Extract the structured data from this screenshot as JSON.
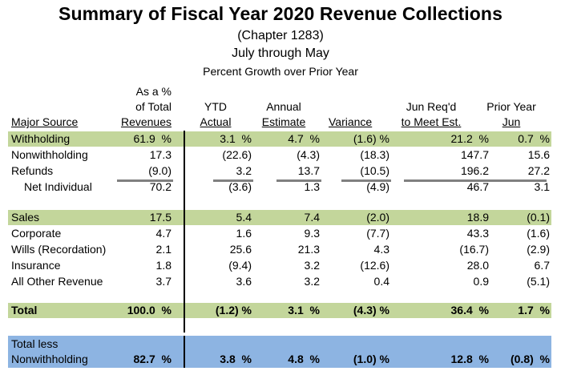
{
  "title": "Summary of Fiscal Year 2020 Revenue Collections",
  "subtitle1": "(Chapter 1283)",
  "subtitle2": "July through May",
  "subtitle3": "Percent Growth over Prior Year",
  "headers": {
    "major_source": "Major Source",
    "pct_total_l1": "As a %",
    "pct_total_l2": "of Total",
    "pct_total_l3": "Revenues",
    "ytd_l1": "YTD",
    "ytd_l2": "Actual",
    "annual_l1": "Annual",
    "annual_l2": "Estimate",
    "variance": "Variance",
    "jun_l1": "Jun Req'd",
    "jun_l2": "to Meet Est.",
    "prior_l1": "Prior Year",
    "prior_l2": "Jun"
  },
  "rows": [
    {
      "label": "Withholding",
      "pct": "61.9  %",
      "ytd": "3.1  %",
      "annual": "4.7  %",
      "variance": "(1.6) %",
      "jun": "21.2  %",
      "prior": "0.7  %"
    },
    {
      "label": "Nonwithholding",
      "pct": "17.3",
      "ytd": "(22.6)",
      "annual": "(4.3)",
      "variance": "(18.3)",
      "jun": "147.7",
      "prior": "15.6"
    },
    {
      "label": "Refunds",
      "pct": "(9.0)",
      "ytd": "3.2",
      "annual": "13.7",
      "variance": "(10.5)",
      "jun": "196.2",
      "prior": "27.2"
    },
    {
      "label": "Net Individual",
      "pct": "70.2",
      "ytd": "(3.6)",
      "annual": "1.3",
      "variance": "(4.9)",
      "jun": "46.7",
      "prior": "3.1"
    },
    {
      "label": "Sales",
      "pct": "17.5",
      "ytd": "5.4",
      "annual": "7.4",
      "variance": "(2.0)",
      "jun": "18.9",
      "prior": "(0.1)"
    },
    {
      "label": "Corporate",
      "pct": "4.7",
      "ytd": "1.6",
      "annual": "9.3",
      "variance": "(7.7)",
      "jun": "43.3",
      "prior": "(1.6)"
    },
    {
      "label": "Wills (Recordation)",
      "pct": "2.1",
      "ytd": "25.6",
      "annual": "21.3",
      "variance": "4.3",
      "jun": "(16.7)",
      "prior": "(2.9)"
    },
    {
      "label": "Insurance",
      "pct": "1.8",
      "ytd": "(9.4)",
      "annual": "3.2",
      "variance": "(12.6)",
      "jun": "28.0",
      "prior": "6.7"
    },
    {
      "label": "All Other Revenue",
      "pct": "3.7",
      "ytd": "3.6",
      "annual": "3.2",
      "variance": "0.4",
      "jun": "0.9",
      "prior": "(5.1)"
    },
    {
      "label": "Total",
      "pct": "100.0  %",
      "ytd": "(1.2) %",
      "annual": "3.1  %",
      "variance": "(4.3) %",
      "jun": "36.4  %",
      "prior": "1.7  %"
    },
    {
      "label": "Total less",
      "pct": "",
      "ytd": "",
      "annual": "",
      "variance": "",
      "jun": "",
      "prior": ""
    },
    {
      "label": "Nonwithholding",
      "pct": "82.7  %",
      "ytd": "3.8  %",
      "annual": "4.8  %",
      "variance": "(1.0) %",
      "jun": "12.8  %",
      "prior": "(0.8)  %"
    }
  ]
}
